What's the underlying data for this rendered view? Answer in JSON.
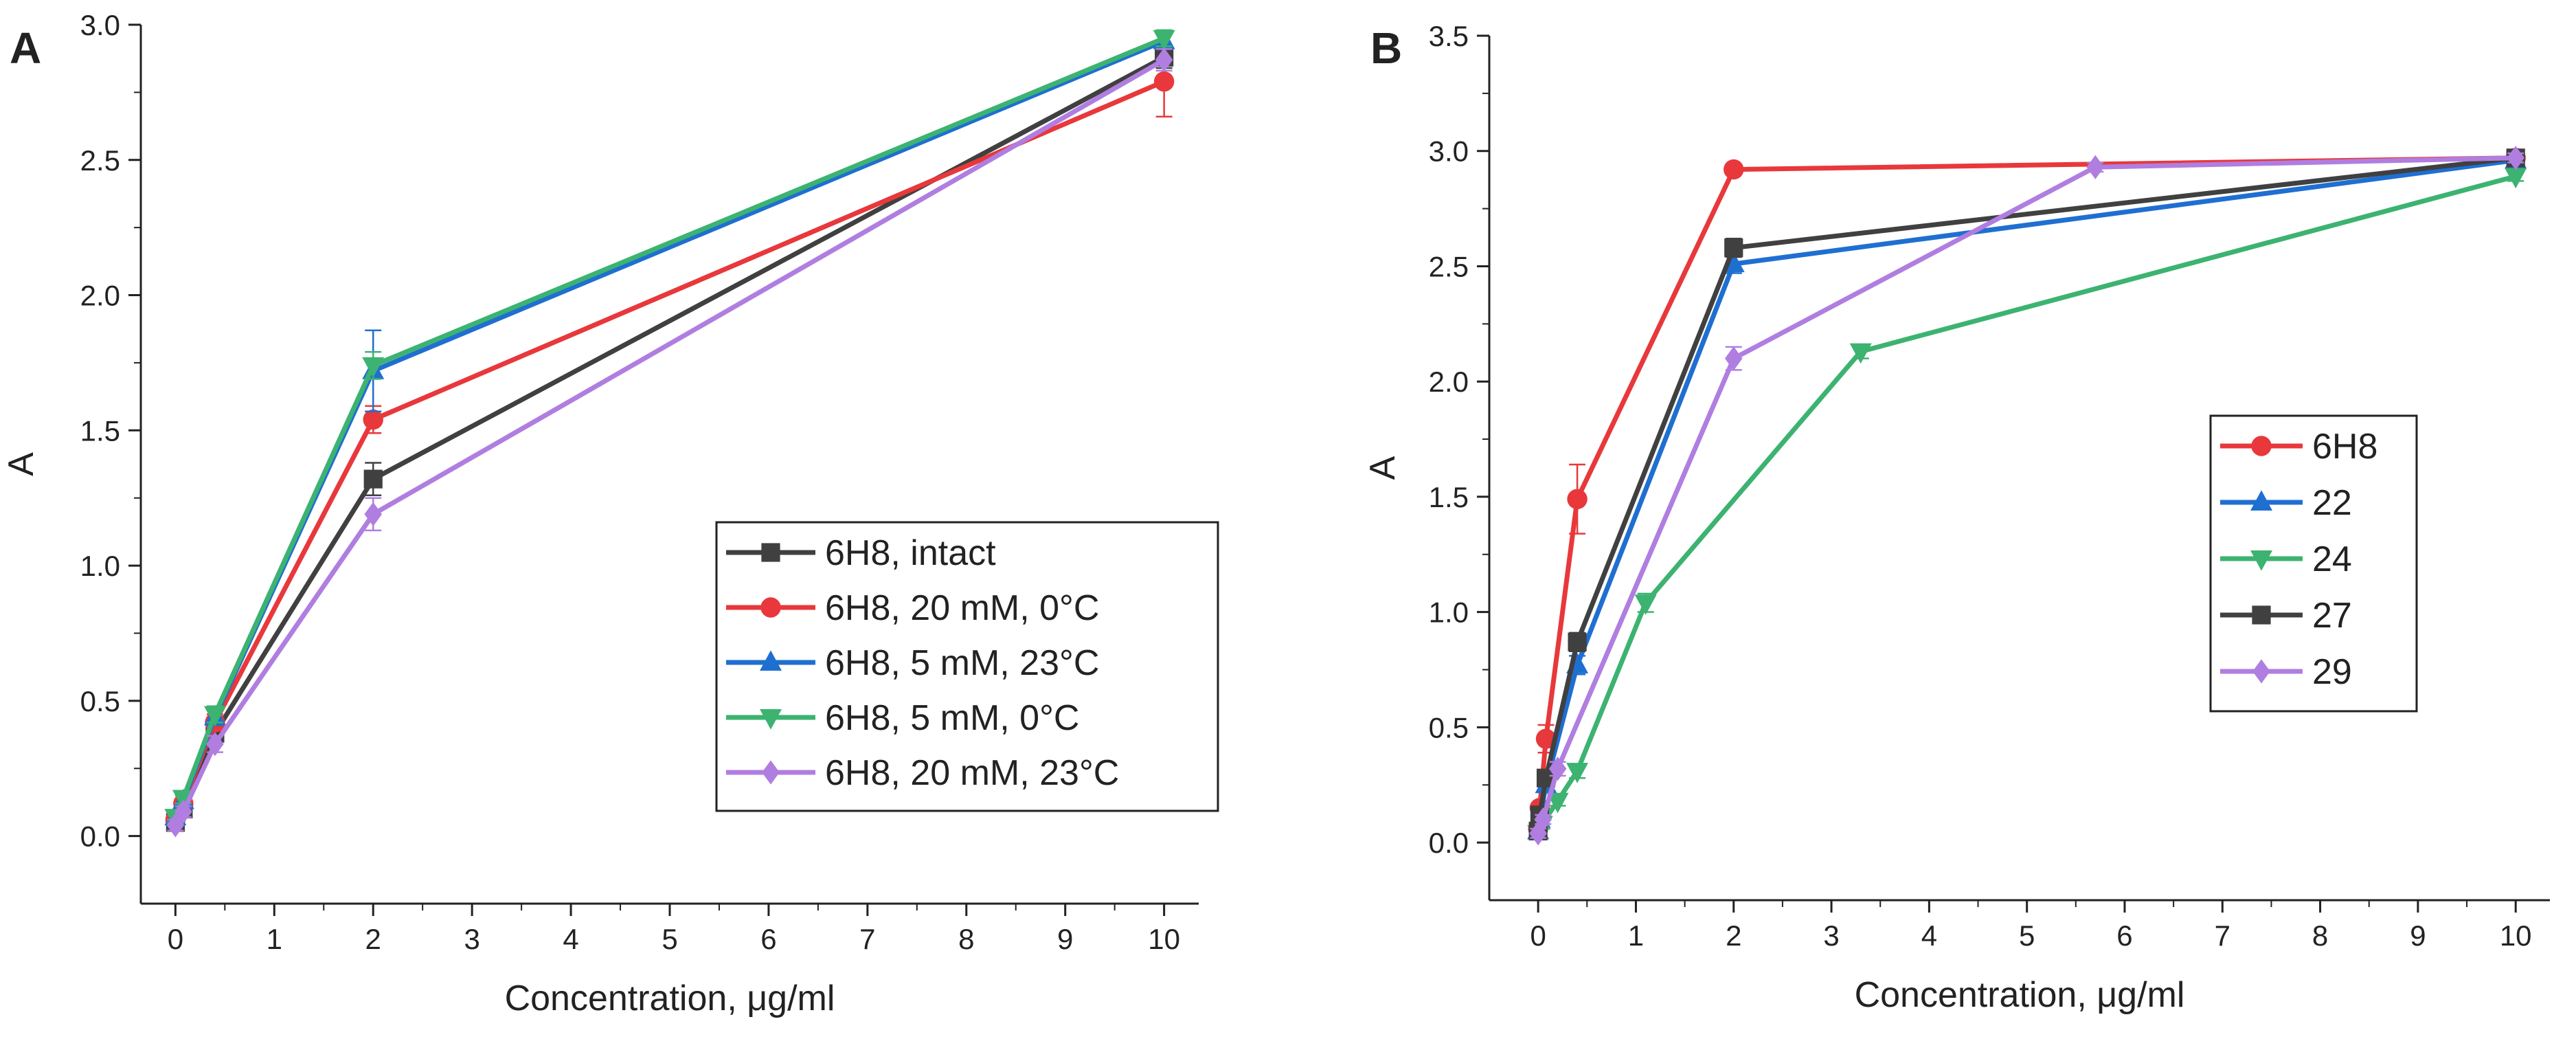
{
  "chart_data": [
    {
      "panel_label": "A",
      "type": "line",
      "xlabel": "Concentration, μg/ml",
      "ylabel": "A",
      "xlim": [
        -0.35,
        10.35
      ],
      "ylim": [
        -0.25,
        3.0
      ],
      "xticks": [
        0,
        1,
        2,
        3,
        4,
        5,
        6,
        7,
        8,
        9,
        10
      ],
      "yticks": [
        0.0,
        0.5,
        1.0,
        1.5,
        2.0,
        2.5,
        3.0
      ],
      "ytick_labels": [
        "0.0",
        "0.5",
        "1.0",
        "1.5",
        "2.0",
        "2.5",
        "3.0"
      ],
      "legend_position": "bottom-right",
      "series": [
        {
          "name": "6H8, intact",
          "color": "#404040",
          "marker": "square",
          "x": [
            0,
            0.08,
            0.4,
            2,
            10
          ],
          "y": [
            0.05,
            0.1,
            0.38,
            1.32,
            2.88
          ],
          "err": [
            0.02,
            0.02,
            0.03,
            0.06,
            0.04
          ]
        },
        {
          "name": "6H8, 20 mM, 0°C",
          "color": "#e8383b",
          "marker": "circle",
          "x": [
            0,
            0.08,
            0.4,
            2,
            10
          ],
          "y": [
            0.06,
            0.12,
            0.42,
            1.54,
            2.79
          ],
          "err": [
            0.02,
            0.02,
            0.03,
            0.05,
            0.13
          ]
        },
        {
          "name": "6H8, 5 mM, 23°C",
          "color": "#1f6fd1",
          "marker": "triangle-up",
          "x": [
            0,
            0.08,
            0.4,
            2,
            10
          ],
          "y": [
            0.07,
            0.13,
            0.44,
            1.72,
            2.94
          ],
          "err": [
            0.02,
            0.02,
            0.03,
            0.15,
            0.03
          ]
        },
        {
          "name": "6H8, 5 mM, 0°C",
          "color": "#3cb371",
          "marker": "triangle-down",
          "x": [
            0,
            0.08,
            0.4,
            2,
            10
          ],
          "y": [
            0.07,
            0.14,
            0.45,
            1.74,
            2.95
          ],
          "err": [
            0.02,
            0.02,
            0.03,
            0.05,
            0.03
          ]
        },
        {
          "name": "6H8, 20 mM, 23°C",
          "color": "#b07ee0",
          "marker": "diamond",
          "x": [
            0,
            0.08,
            0.4,
            2,
            10
          ],
          "y": [
            0.04,
            0.09,
            0.34,
            1.19,
            2.87
          ],
          "err": [
            0.02,
            0.02,
            0.03,
            0.06,
            0.04
          ]
        }
      ]
    },
    {
      "panel_label": "B",
      "type": "line",
      "xlabel": "Concentration, μg/ml",
      "ylabel": "A",
      "xlim": [
        -0.5,
        10.35
      ],
      "ylim": [
        -0.25,
        3.5
      ],
      "xticks": [
        0,
        1,
        2,
        3,
        4,
        5,
        6,
        7,
        8,
        9,
        10
      ],
      "yticks": [
        0.0,
        0.5,
        1.0,
        1.5,
        2.0,
        2.5,
        3.0,
        3.5
      ],
      "ytick_labels": [
        "0.0",
        "0.5",
        "1.0",
        "1.5",
        "2.0",
        "2.5",
        "3.0",
        "3.5"
      ],
      "legend_position": "right",
      "series": [
        {
          "name": "6H8",
          "color": "#e8383b",
          "marker": "circle",
          "x": [
            0,
            0.016,
            0.08,
            0.4,
            2,
            10
          ],
          "y": [
            0.06,
            0.15,
            0.45,
            1.49,
            2.92,
            2.97
          ],
          "err": [
            0.02,
            0.02,
            0.06,
            0.15,
            0.02,
            0.02
          ]
        },
        {
          "name": "22",
          "color": "#1f6fd1",
          "marker": "triangle-up",
          "x": [
            0,
            0.016,
            0.08,
            0.4,
            2,
            10
          ],
          "y": [
            0.05,
            0.1,
            0.25,
            0.77,
            2.51,
            2.96
          ],
          "err": [
            0.02,
            0.02,
            0.03,
            0.04,
            0.04,
            0.02
          ]
        },
        {
          "name": "24",
          "color": "#3cb371",
          "marker": "triangle-down",
          "x": [
            0,
            0.04,
            0.2,
            0.4,
            1.1,
            3.3,
            10
          ],
          "y": [
            0.04,
            0.08,
            0.18,
            0.31,
            1.04,
            2.13,
            2.89
          ],
          "err": [
            0.02,
            0.02,
            0.02,
            0.03,
            0.04,
            0.03,
            0.02
          ]
        },
        {
          "name": "27",
          "color": "#404040",
          "marker": "square",
          "x": [
            0,
            0.016,
            0.08,
            0.4,
            2,
            10
          ],
          "y": [
            0.05,
            0.12,
            0.28,
            0.87,
            2.58,
            2.97
          ],
          "err": [
            0.02,
            0.02,
            0.03,
            0.04,
            0.04,
            0.02
          ]
        },
        {
          "name": "29",
          "color": "#b07ee0",
          "marker": "diamond",
          "x": [
            0,
            0.05,
            0.2,
            2,
            5.7,
            10
          ],
          "y": [
            0.04,
            0.1,
            0.32,
            2.1,
            2.93,
            2.97
          ],
          "err": [
            0.02,
            0.02,
            0.03,
            0.05,
            0.02,
            0.02
          ]
        }
      ]
    }
  ]
}
